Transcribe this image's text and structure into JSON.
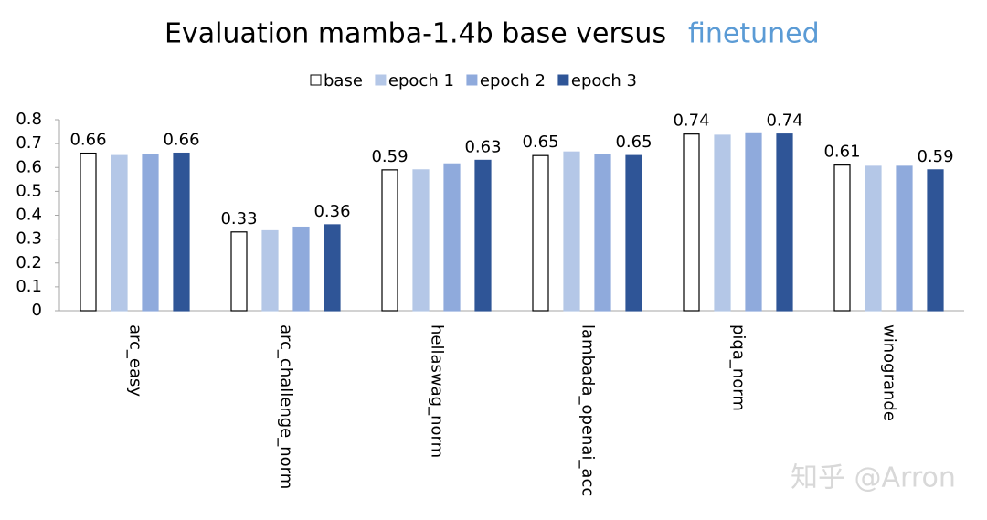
{
  "chart_data": {
    "type": "bar",
    "title": "Evaluation mamba-1.4b base versus",
    "title_highlight": "finetuned",
    "title_highlight_color": "#5b9bd5",
    "watermark": "知乎 @Arron",
    "categories": [
      "arc_easy",
      "arc_challenge_norm",
      "hellaswag_norm",
      "lambada_openai_acc",
      "piqa_norm",
      "winogrande"
    ],
    "series": [
      {
        "name": "base",
        "color": "#ffffff",
        "stroke": "#000000",
        "show_labels": true,
        "values": [
          0.66,
          0.33,
          0.59,
          0.65,
          0.74,
          0.61
        ]
      },
      {
        "name": "epoch 1",
        "color": "#b4c7e7",
        "show_labels": false,
        "values": [
          0.65,
          0.335,
          0.59,
          0.665,
          0.735,
          0.605
        ]
      },
      {
        "name": "epoch 2",
        "color": "#8faadc",
        "show_labels": false,
        "values": [
          0.655,
          0.35,
          0.615,
          0.655,
          0.745,
          0.605
        ]
      },
      {
        "name": "epoch 3",
        "color": "#2f5597",
        "show_labels": true,
        "values": [
          0.66,
          0.36,
          0.63,
          0.65,
          0.74,
          0.59
        ]
      }
    ],
    "ylim": [
      0,
      0.8
    ],
    "yticks": [
      0,
      0.1,
      0.2,
      0.3,
      0.4,
      0.5,
      0.6,
      0.7,
      0.8
    ],
    "legend": "top",
    "grid": false
  }
}
